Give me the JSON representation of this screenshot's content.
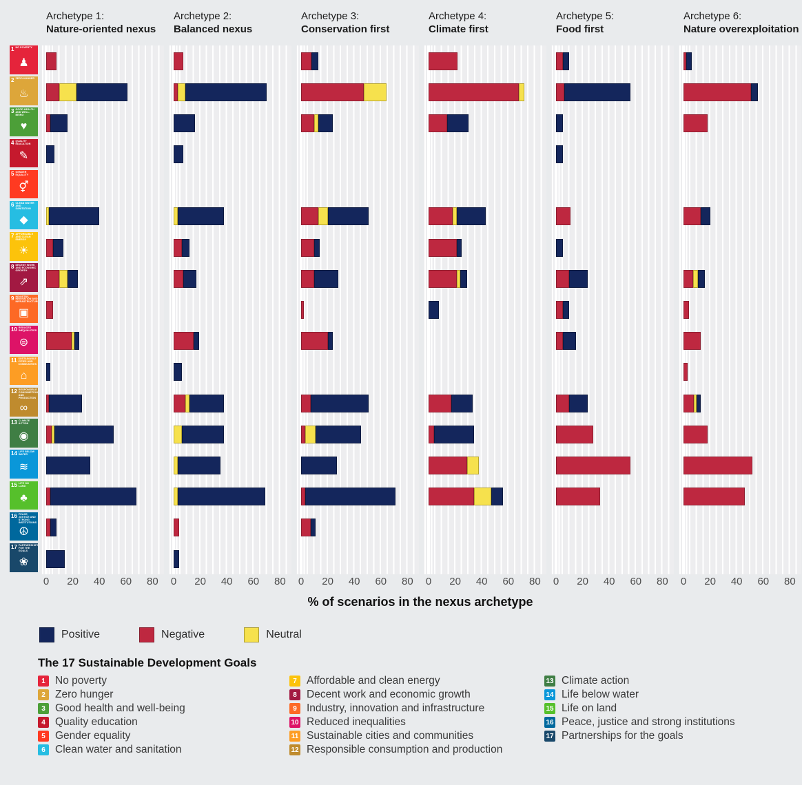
{
  "legend": {
    "items": [
      {
        "label": "Positive",
        "color": "#14265c"
      },
      {
        "label": "Negative",
        "color": "#be2840"
      },
      {
        "label": "Neutral",
        "color": "#f6e14d"
      }
    ]
  },
  "sdg_legend": {
    "title": "The 17 Sustainable Development Goals",
    "columns": [
      [
        1,
        2,
        3,
        4,
        5,
        6
      ],
      [
        7,
        8,
        9,
        10,
        11,
        12
      ],
      [
        13,
        14,
        15,
        16,
        17
      ]
    ]
  },
  "chart_data": {
    "type": "bar",
    "orientation": "horizontal",
    "stacked": true,
    "title": "",
    "xlabel": "% of scenarios in the nexus archetype",
    "ylabel": "",
    "x_ticks": [
      0,
      20,
      40,
      60,
      80
    ],
    "xlim": [
      0,
      88
    ],
    "grid": "white vertical gridlines every 5 units",
    "legend_position": "bottom-left",
    "segment_order": [
      "negative",
      "neutral",
      "positive"
    ],
    "colors": {
      "positive": "#14265c",
      "negative": "#be2840",
      "neutral": "#f6e14d"
    },
    "sdgs": [
      {
        "num": 1,
        "title": "No poverty",
        "icon_label": "NO POVERTY",
        "glyph": "♟",
        "color": "#e5243b"
      },
      {
        "num": 2,
        "title": "Zero hunger",
        "icon_label": "ZERO HUNGER",
        "glyph": "♨",
        "color": "#dda63a"
      },
      {
        "num": 3,
        "title": "Good health and well-being",
        "icon_label": "GOOD HEALTH AND WELL-BEING",
        "glyph": "♥",
        "color": "#4c9f38"
      },
      {
        "num": 4,
        "title": "Quality education",
        "icon_label": "QUALITY EDUCATION",
        "glyph": "✎",
        "color": "#c5192d"
      },
      {
        "num": 5,
        "title": "Gender equality",
        "icon_label": "GENDER EQUALITY",
        "glyph": "⚥",
        "color": "#ff3a21"
      },
      {
        "num": 6,
        "title": "Clean water and sanitation",
        "icon_label": "CLEAN WATER AND SANITATION",
        "glyph": "◆",
        "color": "#26bde2"
      },
      {
        "num": 7,
        "title": "Affordable and clean energy",
        "icon_label": "AFFORDABLE AND CLEAN ENERGY",
        "glyph": "☀",
        "color": "#fcc30b"
      },
      {
        "num": 8,
        "title": "Decent work and economic growth",
        "icon_label": "DECENT WORK AND ECONOMIC GROWTH",
        "glyph": "⇗",
        "color": "#a21942"
      },
      {
        "num": 9,
        "title": "Industry, innovation and infrastructure",
        "icon_label": "INDUSTRY, INNOVATION AND INFRASTRUCTURE",
        "glyph": "▣",
        "color": "#fd6925"
      },
      {
        "num": 10,
        "title": "Reduced inequalities",
        "icon_label": "REDUCED INEQUALITIES",
        "glyph": "⊜",
        "color": "#dd1367"
      },
      {
        "num": 11,
        "title": "Sustainable cities and communities",
        "icon_label": "SUSTAINABLE CITIES AND COMMUNITIES",
        "glyph": "⌂",
        "color": "#fd9d24"
      },
      {
        "num": 12,
        "title": "Responsible consumption and production",
        "icon_label": "RESPONSIBLE CONSUMPTION AND PRODUCTION",
        "glyph": "∞",
        "color": "#bf8b2e"
      },
      {
        "num": 13,
        "title": "Climate action",
        "icon_label": "CLIMATE ACTION",
        "glyph": "◉",
        "color": "#3f7e44"
      },
      {
        "num": 14,
        "title": "Life below water",
        "icon_label": "LIFE BELOW WATER",
        "glyph": "≋",
        "color": "#0a97d9"
      },
      {
        "num": 15,
        "title": "Life on land",
        "icon_label": "LIFE ON LAND",
        "glyph": "♣",
        "color": "#56c02b"
      },
      {
        "num": 16,
        "title": "Peace, justice and strong institutions",
        "icon_label": "PEACE, JUSTICE AND STRONG INSTITUTIONS",
        "glyph": "☮",
        "color": "#00689d"
      },
      {
        "num": 17,
        "title": "Partnerships for the goals",
        "icon_label": "PARTNERSHIPS FOR THE GOALS",
        "glyph": "❀",
        "color": "#19486a"
      }
    ],
    "panels": [
      {
        "label": "Archetype 1:",
        "name": "Nature-oriented nexus",
        "values": [
          [
            8,
            0,
            0
          ],
          [
            10,
            13,
            38
          ],
          [
            3,
            0,
            13
          ],
          [
            0,
            0,
            6
          ],
          [
            0,
            0,
            0
          ],
          [
            0,
            2,
            38
          ],
          [
            5,
            0,
            8
          ],
          [
            10,
            6,
            8
          ],
          [
            5,
            0,
            0
          ],
          [
            19,
            2,
            4
          ],
          [
            0,
            0,
            3
          ],
          [
            2,
            0,
            25
          ],
          [
            4,
            2,
            45
          ],
          [
            0,
            0,
            33
          ],
          [
            3,
            0,
            65
          ],
          [
            3,
            0,
            5
          ],
          [
            0,
            0,
            14
          ]
        ]
      },
      {
        "label": "Archetype 2:",
        "name": "Balanced nexus",
        "values": [
          [
            7,
            0,
            0
          ],
          [
            3,
            6,
            61
          ],
          [
            0,
            0,
            16
          ],
          [
            0,
            0,
            7
          ],
          [
            0,
            0,
            0
          ],
          [
            0,
            3,
            35
          ],
          [
            6,
            0,
            6
          ],
          [
            7,
            0,
            10
          ],
          [
            0,
            0,
            0
          ],
          [
            15,
            0,
            4
          ],
          [
            0,
            0,
            6
          ],
          [
            9,
            3,
            26
          ],
          [
            0,
            6,
            32
          ],
          [
            0,
            3,
            32
          ],
          [
            0,
            3,
            66
          ],
          [
            4,
            0,
            0
          ],
          [
            0,
            0,
            4
          ]
        ]
      },
      {
        "label": "Archetype 3:",
        "name": "Conservation first",
        "values": [
          [
            8,
            0,
            5
          ],
          [
            47,
            17,
            0
          ],
          [
            10,
            3,
            11
          ],
          [
            0,
            0,
            0
          ],
          [
            0,
            0,
            0
          ],
          [
            13,
            7,
            31
          ],
          [
            10,
            0,
            4
          ],
          [
            10,
            0,
            18
          ],
          [
            2,
            0,
            0
          ],
          [
            20,
            0,
            4
          ],
          [
            0,
            0,
            0
          ],
          [
            7,
            0,
            44
          ],
          [
            3,
            8,
            34
          ],
          [
            0,
            0,
            27
          ],
          [
            3,
            0,
            68
          ],
          [
            7,
            0,
            4
          ],
          [
            0,
            0,
            0
          ]
        ]
      },
      {
        "label": "Archetype 4:",
        "name": "Climate first",
        "values": [
          [
            22,
            0,
            0
          ],
          [
            68,
            4,
            0
          ],
          [
            14,
            0,
            16
          ],
          [
            0,
            0,
            0
          ],
          [
            0,
            0,
            0
          ],
          [
            18,
            3,
            22
          ],
          [
            21,
            0,
            4
          ],
          [
            21,
            3,
            5
          ],
          [
            0,
            0,
            8
          ],
          [
            0,
            0,
            0
          ],
          [
            0,
            0,
            0
          ],
          [
            17,
            0,
            16
          ],
          [
            4,
            0,
            30
          ],
          [
            29,
            9,
            0
          ],
          [
            34,
            13,
            9
          ],
          [
            0,
            0,
            0
          ],
          [
            0,
            0,
            0
          ]
        ]
      },
      {
        "label": "Archetype 5:",
        "name": "Food first",
        "values": [
          [
            5,
            0,
            5
          ],
          [
            6,
            0,
            50
          ],
          [
            0,
            0,
            5
          ],
          [
            0,
            0,
            5
          ],
          [
            0,
            0,
            0
          ],
          [
            11,
            0,
            0
          ],
          [
            0,
            0,
            5
          ],
          [
            10,
            0,
            14
          ],
          [
            5,
            0,
            5
          ],
          [
            5,
            0,
            10
          ],
          [
            0,
            0,
            0
          ],
          [
            10,
            0,
            14
          ],
          [
            28,
            0,
            0
          ],
          [
            56,
            0,
            0
          ],
          [
            33,
            0,
            0
          ],
          [
            0,
            0,
            0
          ],
          [
            0,
            0,
            0
          ]
        ]
      },
      {
        "label": "Archetype 6:",
        "name": "Nature overexploitation",
        "values": [
          [
            2,
            0,
            4
          ],
          [
            51,
            0,
            5
          ],
          [
            18,
            0,
            0
          ],
          [
            0,
            0,
            0
          ],
          [
            0,
            0,
            0
          ],
          [
            13,
            0,
            7
          ],
          [
            0,
            0,
            0
          ],
          [
            7,
            4,
            5
          ],
          [
            4,
            0,
            0
          ],
          [
            13,
            0,
            0
          ],
          [
            3,
            0,
            0
          ],
          [
            8,
            2,
            3
          ],
          [
            18,
            0,
            0
          ],
          [
            52,
            0,
            0
          ],
          [
            46,
            0,
            0
          ],
          [
            0,
            0,
            0
          ],
          [
            0,
            0,
            0
          ]
        ]
      }
    ]
  }
}
